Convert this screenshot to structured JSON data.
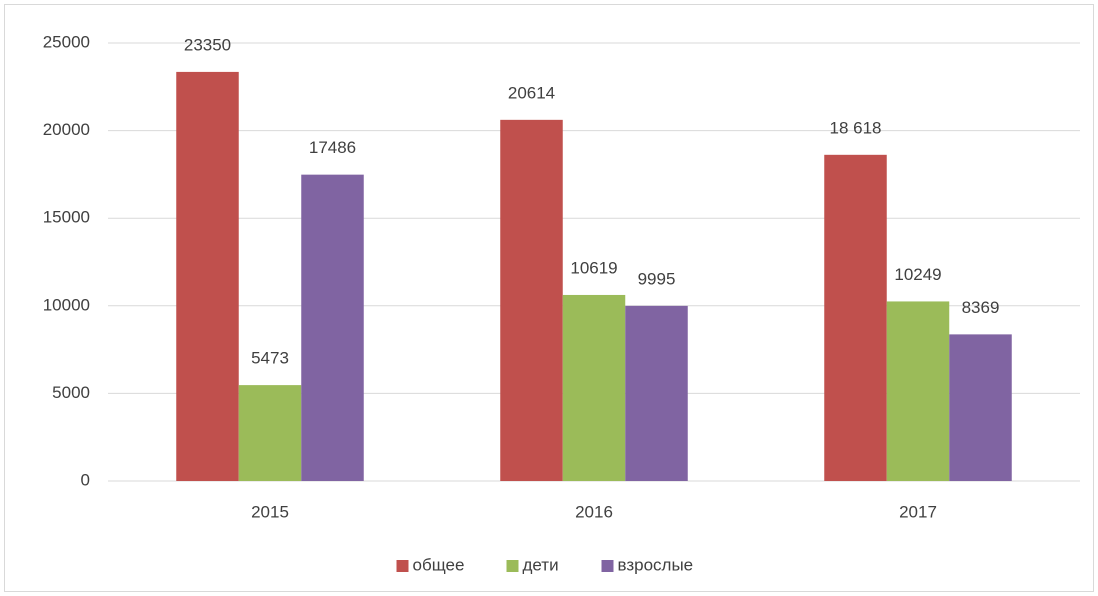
{
  "chart_data": {
    "type": "bar",
    "categories": [
      "2015",
      "2016",
      "2017"
    ],
    "series": [
      {
        "name": "общее",
        "color": "#c0504d",
        "values": [
          23350,
          20614,
          18618
        ],
        "value_labels": [
          "23350",
          "20614",
          "18 618"
        ]
      },
      {
        "name": "дети",
        "color": "#9bbb59",
        "values": [
          5473,
          10619,
          10249
        ]
      },
      {
        "name": "взрослые",
        "color": "#8064a2",
        "values": [
          17486,
          9995,
          8369
        ]
      }
    ],
    "ylim": [
      0,
      25000
    ],
    "yticks": [
      0,
      5000,
      10000,
      15000,
      20000,
      25000
    ],
    "grid": true,
    "legend": "bottom"
  }
}
